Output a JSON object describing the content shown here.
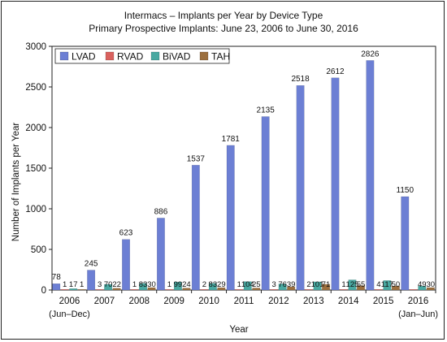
{
  "chart_data": {
    "type": "bar",
    "title": "Intermacs – Implants per Year by Device Type",
    "subtitle": "Primary Prospective Implants: June 23, 2006 to June 30, 2016",
    "xlabel": "Year",
    "ylabel": "Number of Implants per Year",
    "ylim": [
      0,
      3000
    ],
    "yticks": [
      "0",
      "500",
      "1000",
      "1500",
      "2000",
      "2500",
      "3000"
    ],
    "categories": [
      "2006",
      "2007",
      "2008",
      "2009",
      "2010",
      "2011",
      "2012",
      "2013",
      "2014",
      "2015",
      "2016"
    ],
    "category_sublabels": [
      "(Jun–Dec)",
      "",
      "",
      "",
      "",
      "",
      "",
      "",
      "",
      "",
      "(Jan–Jun)"
    ],
    "legend_position": "top-left",
    "series": [
      {
        "name": "LVAD",
        "color": "#6c7fd4",
        "values": [
          78,
          245,
          623,
          886,
          1537,
          1781,
          2135,
          2518,
          2612,
          2826,
          1150
        ]
      },
      {
        "name": "RVAD",
        "color": "#d9615e",
        "values": [
          1,
          3,
          1,
          1,
          2,
          1,
          3,
          2,
          1,
          4,
          1
        ]
      },
      {
        "name": "BiVAD",
        "color": "#49a9a1",
        "values": [
          17,
          70,
          83,
          99,
          83,
          104,
          76,
          101,
          125,
          117,
          49
        ]
      },
      {
        "name": "TAH",
        "color": "#9c6f3e",
        "values": [
          1,
          22,
          30,
          24,
          29,
          25,
          39,
          71,
          55,
          50,
          30
        ]
      }
    ],
    "data_labels": [
      [
        "78",
        "1",
        "17",
        "1"
      ],
      [
        "245",
        "3",
        "70",
        "22"
      ],
      [
        "623",
        "1",
        "83",
        "30"
      ],
      [
        "886",
        "1",
        "99",
        "24"
      ],
      [
        "1537",
        "2",
        "83",
        "29"
      ],
      [
        "1781",
        "1",
        "104",
        "25"
      ],
      [
        "2135",
        "3",
        "76",
        "39"
      ],
      [
        "2518",
        "2",
        "101",
        "71"
      ],
      [
        "2612",
        "1",
        "125",
        "55"
      ],
      [
        "2826",
        "4",
        "117",
        "50"
      ],
      [
        "1150",
        "",
        "49",
        "30"
      ]
    ],
    "grid": false
  }
}
